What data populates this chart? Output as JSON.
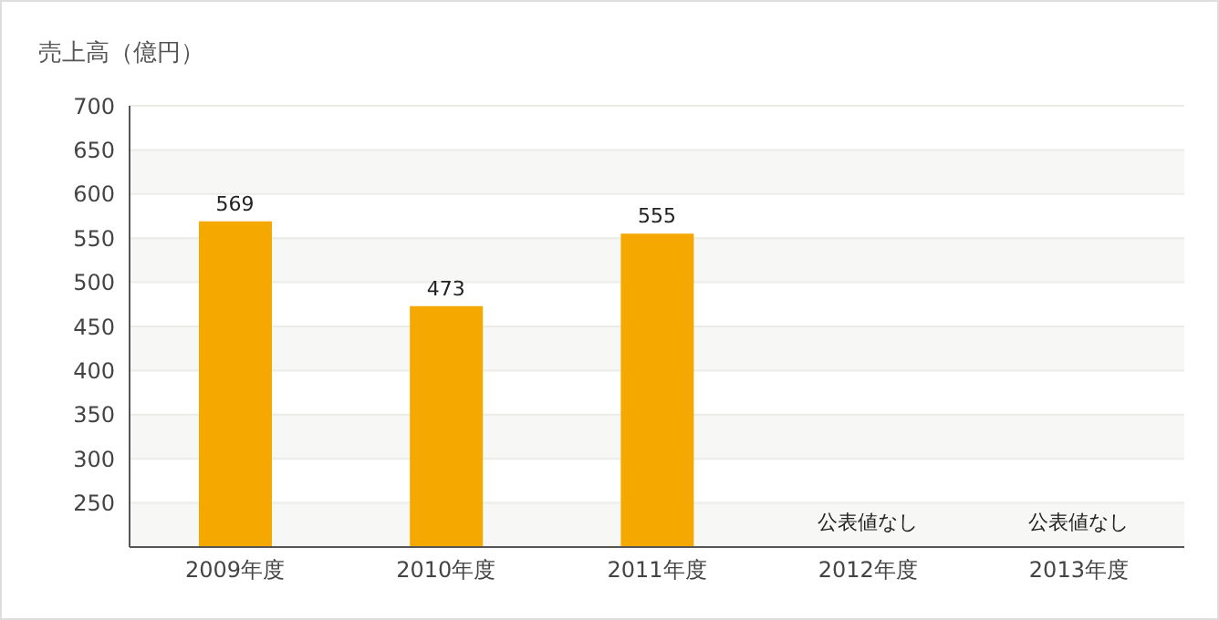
{
  "chart_data": {
    "type": "bar",
    "ylabel": "売上高（億円）",
    "categories": [
      "2009年度",
      "2010年度",
      "2011年度",
      "2012年度",
      "2013年度"
    ],
    "values": [
      569,
      473,
      555,
      null,
      null
    ],
    "value_labels": [
      "569",
      "473",
      "555",
      "公表値なし",
      "公表値なし"
    ],
    "color": "#f5a800",
    "ylim": [
      200,
      700
    ],
    "yticks": [
      250,
      300,
      350,
      400,
      450,
      500,
      550,
      600,
      650,
      700
    ],
    "grid": "y"
  }
}
